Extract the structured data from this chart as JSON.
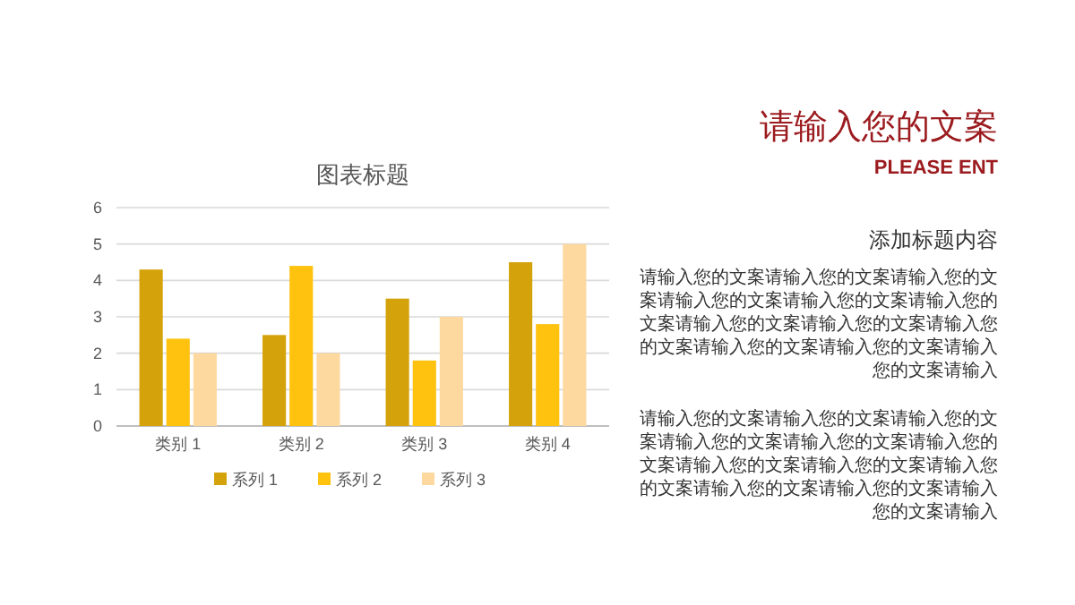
{
  "chart_data": [
    {
      "type": "bar",
      "title": "图表标题",
      "categories": [
        "类别 1",
        "类别 2",
        "类别 3",
        "类别 4"
      ],
      "series": [
        {
          "name": "系列 1",
          "color": "#d4a20a",
          "values": [
            4.3,
            2.5,
            3.5,
            4.5
          ]
        },
        {
          "name": "系列 2",
          "color": "#ffc20e",
          "values": [
            2.4,
            4.4,
            1.8,
            2.8
          ]
        },
        {
          "name": "系列 3",
          "color": "#fdd9a0",
          "values": [
            2,
            2,
            3,
            5
          ]
        }
      ],
      "ylim": [
        0,
        6
      ],
      "yticks": [
        0,
        1,
        2,
        3,
        4,
        5,
        6
      ],
      "grid": "y",
      "legend": "bottom"
    },
    {
      "type": "other",
      "title": "请输入您的文案",
      "subtitle": "PLEASE ENT",
      "annotations": [
        "添加标题内容",
        "请输入您的文案请输入您的文案请输入您的文案请输入您的文案请输入您的文案请输入您的文案请输入您的文案请输入您的文案请输入您的文案请输入您的文案请输入您的文案请输入您的文案请输入",
        "请输入您的文案请输入您的文案请输入您的文案请输入您的文案请输入您的文案请输入您的文案请输入您的文案请输入您的文案请输入您的文案请输入您的文案请输入您的文案请输入您的文案请输入"
      ]
    }
  ]
}
